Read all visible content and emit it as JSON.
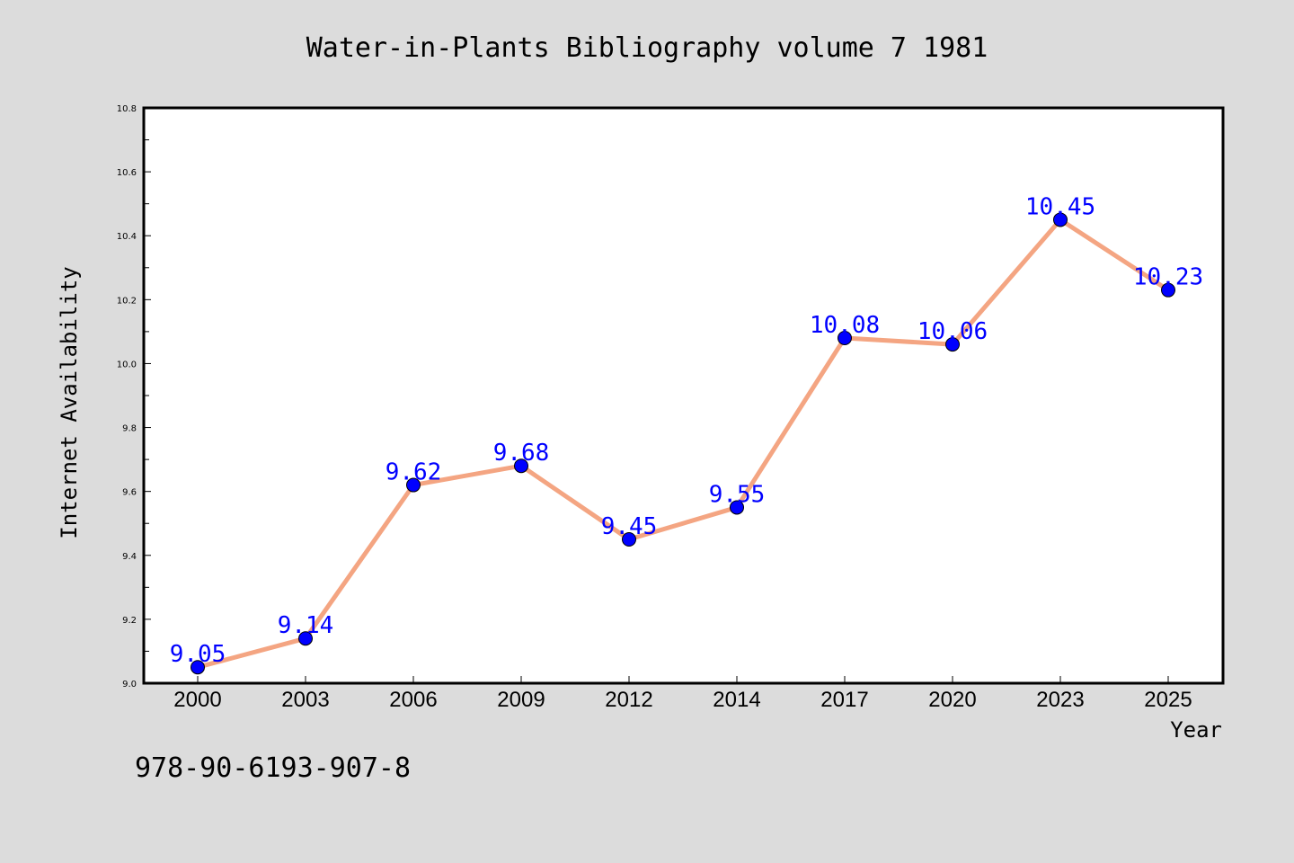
{
  "chart_data": {
    "type": "line",
    "title": "Water-in-Plants Bibliography volume 7 1981",
    "xlabel": "Year",
    "ylabel": "Internet Availability",
    "x": [
      "2000",
      "2003",
      "2006",
      "2009",
      "2012",
      "2014",
      "2017",
      "2020",
      "2023",
      "2025"
    ],
    "series": [
      {
        "values": [
          9.05,
          9.14,
          9.62,
          9.68,
          9.45,
          9.55,
          10.08,
          10.06,
          10.45,
          10.23
        ],
        "line_color": "#f4a582",
        "marker_color": "#0000ff",
        "label_color": "#0000ff"
      }
    ],
    "ylim": [
      9.0,
      10.8
    ],
    "yticks": [
      "9.0",
      "9.2",
      "9.4",
      "9.6",
      "9.8",
      "10.0",
      "10.2",
      "10.4",
      "10.6",
      "10.8"
    ],
    "data_labels": [
      "9.05",
      "9.14",
      "9.62",
      "9.68",
      "9.45",
      "9.55",
      "10.08",
      "10.06",
      "10.45",
      "10.23"
    ],
    "grid": false,
    "legend": "none"
  },
  "footer": {
    "isbn": "978-90-6193-907-8"
  },
  "colors": {
    "background": "#dcdcdc",
    "plot_background": "#ffffff"
  }
}
